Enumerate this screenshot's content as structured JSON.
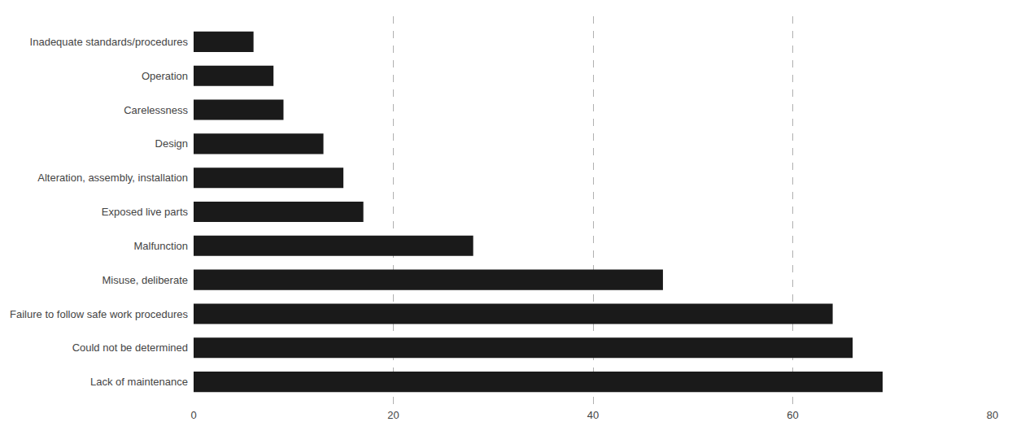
{
  "chart_data": {
    "type": "bar",
    "orientation": "horizontal",
    "categories": [
      "Lack of maintenance",
      "Could not be determined",
      "Failure to follow safe work procedures",
      "Misuse, deliberate",
      "Malfunction",
      "Exposed live parts",
      "Alteration, assembly, installation",
      "Design",
      "Carelessness",
      "Operation",
      "Inadequate standards/procedures"
    ],
    "values": [
      69,
      66,
      64,
      47,
      28,
      17,
      15,
      13,
      9,
      8,
      6
    ],
    "color": "#1a1a1a",
    "xlim": [
      0,
      80
    ],
    "xticks": [
      0,
      20,
      40,
      60,
      80
    ],
    "grid": true
  }
}
